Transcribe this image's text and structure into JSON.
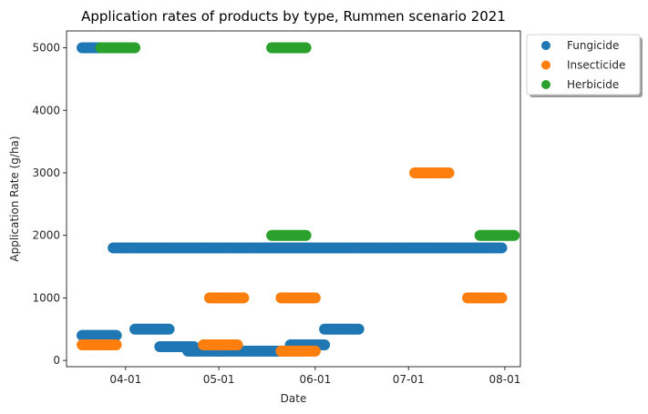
{
  "chart_data": {
    "type": "scatter",
    "title": "Application rates of products by type, Rummen scenario 2021",
    "xlabel": "Date",
    "ylabel": "Application Rate (g/ha)",
    "xlim": [
      "2021-03-13",
      "2021-08-06"
    ],
    "ylim": [
      -100,
      5270
    ],
    "x_ticks": [
      "2021-04-01",
      "2021-05-01",
      "2021-06-01",
      "2021-07-01",
      "2021-08-01"
    ],
    "x_tick_labels": [
      "04-01",
      "05-01",
      "06-01",
      "07-01",
      "08-01"
    ],
    "y_ticks": [
      0,
      1000,
      2000,
      3000,
      4000,
      5000
    ],
    "y_tick_labels": [
      "0",
      "1000",
      "2000",
      "3000",
      "4000",
      "5000"
    ],
    "legend_position": "outside-top-right",
    "series": [
      {
        "name": "Fungicide",
        "color": "#1f77b4",
        "segments": [
          {
            "start": "2021-03-18",
            "end": "2021-03-24",
            "value": 5000
          },
          {
            "start": "2021-03-18",
            "end": "2021-03-29",
            "value": 400
          },
          {
            "start": "2021-03-28",
            "end": "2021-07-31",
            "value": 1800
          },
          {
            "start": "2021-04-04",
            "end": "2021-04-15",
            "value": 500
          },
          {
            "start": "2021-04-12",
            "end": "2021-04-23",
            "value": 220
          },
          {
            "start": "2021-04-21",
            "end": "2021-05-02",
            "value": 150
          },
          {
            "start": "2021-05-01",
            "end": "2021-05-28",
            "value": 150
          },
          {
            "start": "2021-05-24",
            "end": "2021-06-04",
            "value": 250
          },
          {
            "start": "2021-06-04",
            "end": "2021-06-15",
            "value": 500
          }
        ]
      },
      {
        "name": "Insecticide",
        "color": "#ff7f0e",
        "segments": [
          {
            "start": "2021-03-18",
            "end": "2021-03-29",
            "value": 250
          },
          {
            "start": "2021-04-28",
            "end": "2021-05-09",
            "value": 1000
          },
          {
            "start": "2021-04-26",
            "end": "2021-05-07",
            "value": 250
          },
          {
            "start": "2021-05-21",
            "end": "2021-06-01",
            "value": 1000
          },
          {
            "start": "2021-05-21",
            "end": "2021-06-01",
            "value": 150
          },
          {
            "start": "2021-07-03",
            "end": "2021-07-14",
            "value": 3000
          },
          {
            "start": "2021-07-20",
            "end": "2021-07-31",
            "value": 1000
          }
        ]
      },
      {
        "name": "Herbicide",
        "color": "#2ca02c",
        "segments": [
          {
            "start": "2021-03-24",
            "end": "2021-04-04",
            "value": 5000
          },
          {
            "start": "2021-05-18",
            "end": "2021-05-29",
            "value": 5000
          },
          {
            "start": "2021-05-18",
            "end": "2021-05-29",
            "value": 2000
          },
          {
            "start": "2021-07-24",
            "end": "2021-08-04",
            "value": 2000
          }
        ]
      }
    ]
  }
}
